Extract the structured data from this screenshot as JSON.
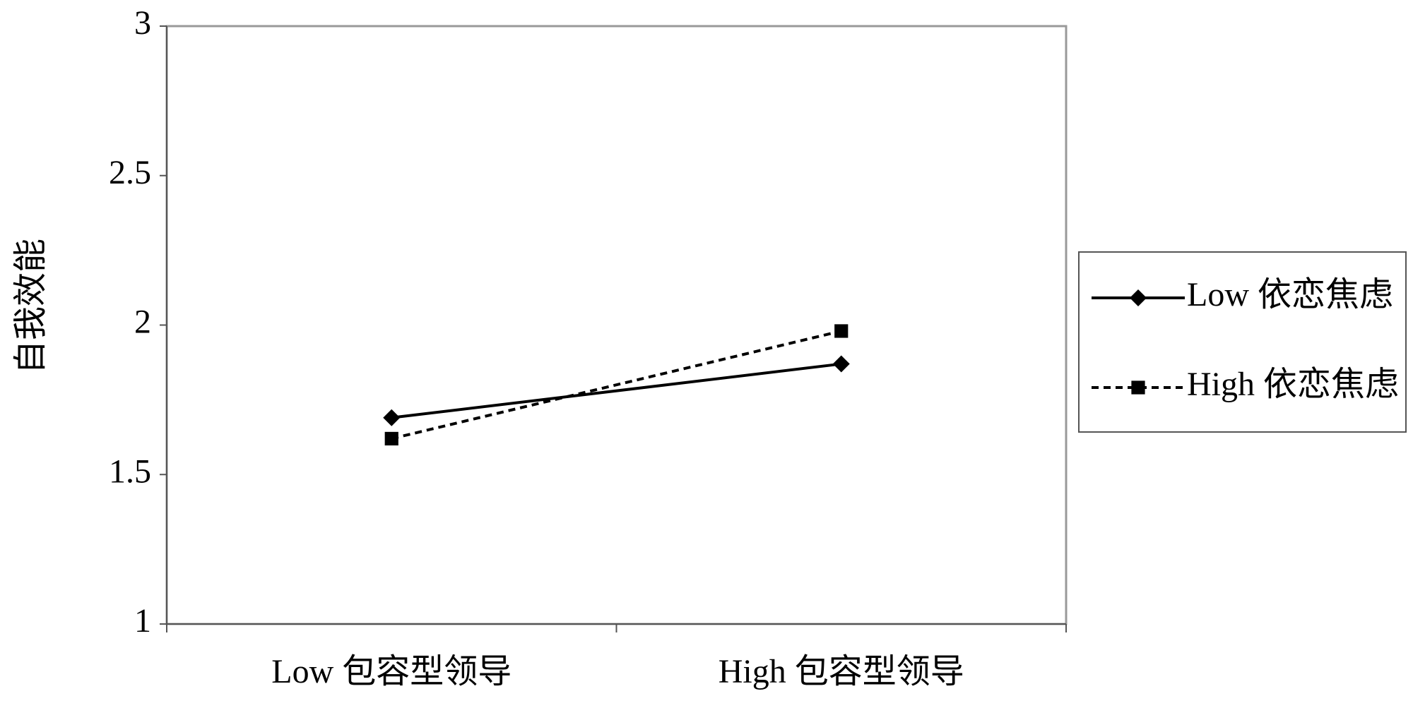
{
  "chart_data": {
    "type": "line",
    "ylabel": "自我效能",
    "categories": [
      "Low 包容型领导",
      "High 包容型领导"
    ],
    "series": [
      {
        "name": "Low 依恋焦虑",
        "color": "#000000",
        "marker": "diamond",
        "linestyle": "solid",
        "values": [
          1.69,
          1.87
        ]
      },
      {
        "name": "High 依恋焦虑",
        "color": "#000000",
        "marker": "square",
        "linestyle": "dashed",
        "values": [
          1.62,
          1.98
        ]
      }
    ],
    "ylim": [
      1,
      3
    ],
    "yticks": [
      1,
      1.5,
      2,
      2.5,
      3
    ],
    "grid": false,
    "legend": "right"
  }
}
